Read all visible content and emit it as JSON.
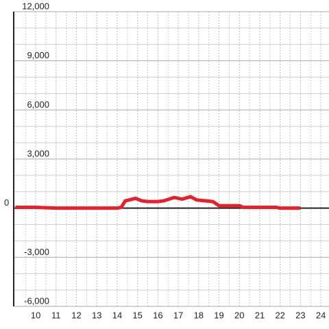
{
  "chart_data": {
    "type": "line",
    "x": [
      9.0,
      10,
      11,
      12,
      13,
      14,
      14.2,
      14.4,
      14.6,
      14.9,
      15.2,
      15.5,
      16,
      16.3,
      16.8,
      17.2,
      17.6,
      17.9,
      18.3,
      18.7,
      19,
      19.5,
      20,
      20.2,
      21,
      21.8,
      22,
      23
    ],
    "series": [
      {
        "color": "#e8202a",
        "values": [
          50,
          50,
          0,
          0,
          0,
          0,
          50,
          450,
          500,
          600,
          450,
          400,
          400,
          450,
          650,
          550,
          700,
          500,
          450,
          400,
          150,
          150,
          150,
          50,
          50,
          50,
          0,
          0
        ]
      }
    ],
    "xlim": [
      8.92,
      24.4
    ],
    "xticks": [
      10,
      11,
      12,
      13,
      14,
      15,
      16,
      17,
      18,
      19,
      20,
      21,
      22,
      23,
      24
    ],
    "ylim": [
      -6000,
      12000
    ],
    "yticks": [
      {
        "value": -6000,
        "label": "-6,000"
      },
      {
        "value": -3000,
        "label": "-3,000"
      },
      0,
      {
        "value": 3000,
        "label": "3,000"
      },
      {
        "value": 6000,
        "label": "6,000"
      },
      {
        "value": 9000,
        "label": "9,000"
      },
      {
        "value": 12000,
        "label": "12,000"
      }
    ],
    "grid": true
  }
}
